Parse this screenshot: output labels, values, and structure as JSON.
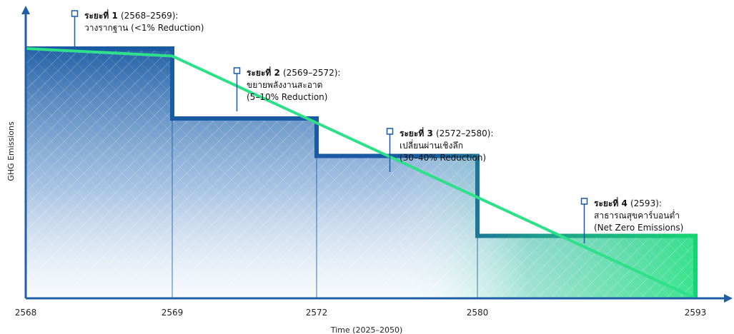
{
  "chart_data": {
    "type": "step-line",
    "xlabel": "Time (2025–2050)",
    "ylabel": "GHG Emissions",
    "x_ticks": [
      "2568",
      "2569",
      "2572",
      "2580",
      "2593"
    ],
    "steps": [
      {
        "start": "2568",
        "end": "2569",
        "level": 100
      },
      {
        "start": "2569",
        "end": "2572",
        "level": 72
      },
      {
        "start": "2572",
        "end": "2580",
        "level": 57
      },
      {
        "start": "2580",
        "end": "2593",
        "level": 25
      }
    ],
    "trend_line": [
      {
        "x": "2568",
        "y": 100
      },
      {
        "x": "2569",
        "y": 97
      },
      {
        "x": "2593",
        "y": 0
      }
    ],
    "annotations": [
      {
        "title": "ระยะที่ 1",
        "range": "(2568–2569):",
        "lines": [
          "วางรากฐาน (<1% Reduction)"
        ]
      },
      {
        "title": "ระยะที่ 2",
        "range": "(2569–2572):",
        "lines": [
          "ขยายพลังงานสะอาด",
          "(5–10% Reduction)"
        ]
      },
      {
        "title": "ระยะที่ 3",
        "range": "(2572–2580):",
        "lines": [
          "เปลี่ยนผ่านเชิงลึก",
          "(30–40% Reduction)"
        ]
      },
      {
        "title": "ระยะที่ 4",
        "range": "(2593):",
        "lines": [
          "สาธารณสุขคาร์บอนต่ำ",
          "(Net Zero Emissions)"
        ]
      }
    ],
    "colors": {
      "axis": "#1f5fa8",
      "step_dark": "#1a5aa3",
      "step_bright": "#19e07a",
      "trend_line": "#2fe08a"
    }
  }
}
